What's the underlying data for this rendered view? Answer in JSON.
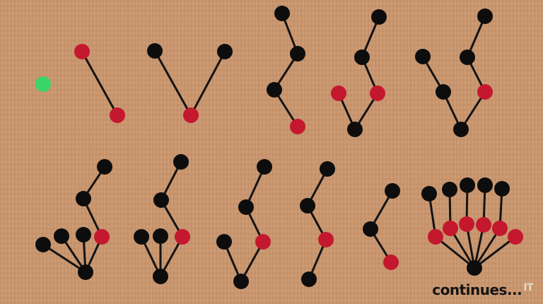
{
  "colors": {
    "background": "#c9956c",
    "edge": "#141414",
    "node_black": "#0d0d0d",
    "node_red": "#c4182f",
    "node_green": "#3ad46a"
  },
  "caption": {
    "text": "continues",
    "ellipsis": "...",
    "logo_mark": "IT"
  }
}
